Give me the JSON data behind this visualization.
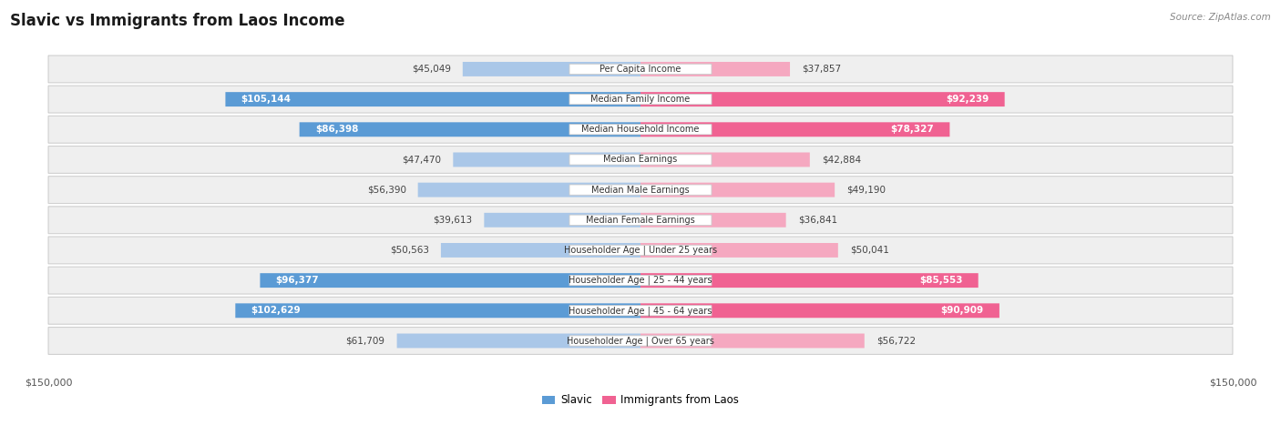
{
  "title": "Slavic vs Immigrants from Laos Income",
  "source": "Source: ZipAtlas.com",
  "categories": [
    "Per Capita Income",
    "Median Family Income",
    "Median Household Income",
    "Median Earnings",
    "Median Male Earnings",
    "Median Female Earnings",
    "Householder Age | Under 25 years",
    "Householder Age | 25 - 44 years",
    "Householder Age | 45 - 64 years",
    "Householder Age | Over 65 years"
  ],
  "slavic_values": [
    45049,
    105144,
    86398,
    47470,
    56390,
    39613,
    50563,
    96377,
    102629,
    61709
  ],
  "laos_values": [
    37857,
    92239,
    78327,
    42884,
    49190,
    36841,
    50041,
    85553,
    90909,
    56722
  ],
  "slavic_labels": [
    "$45,049",
    "$105,144",
    "$86,398",
    "$47,470",
    "$56,390",
    "$39,613",
    "$50,563",
    "$96,377",
    "$102,629",
    "$61,709"
  ],
  "laos_labels": [
    "$37,857",
    "$92,239",
    "$78,327",
    "$42,884",
    "$49,190",
    "$36,841",
    "$50,041",
    "$85,553",
    "$90,909",
    "$56,722"
  ],
  "slavic_color_light": "#aac7e8",
  "slavic_color_dark": "#5b9bd5",
  "laos_color_light": "#f5a8c0",
  "laos_color_dark": "#f06292",
  "max_value": 150000,
  "background_color": "#ffffff",
  "row_bg": "#efefef",
  "label_inside_threshold": 65000,
  "title_fontsize": 12,
  "label_fontsize": 7.5,
  "cat_fontsize": 7.0
}
